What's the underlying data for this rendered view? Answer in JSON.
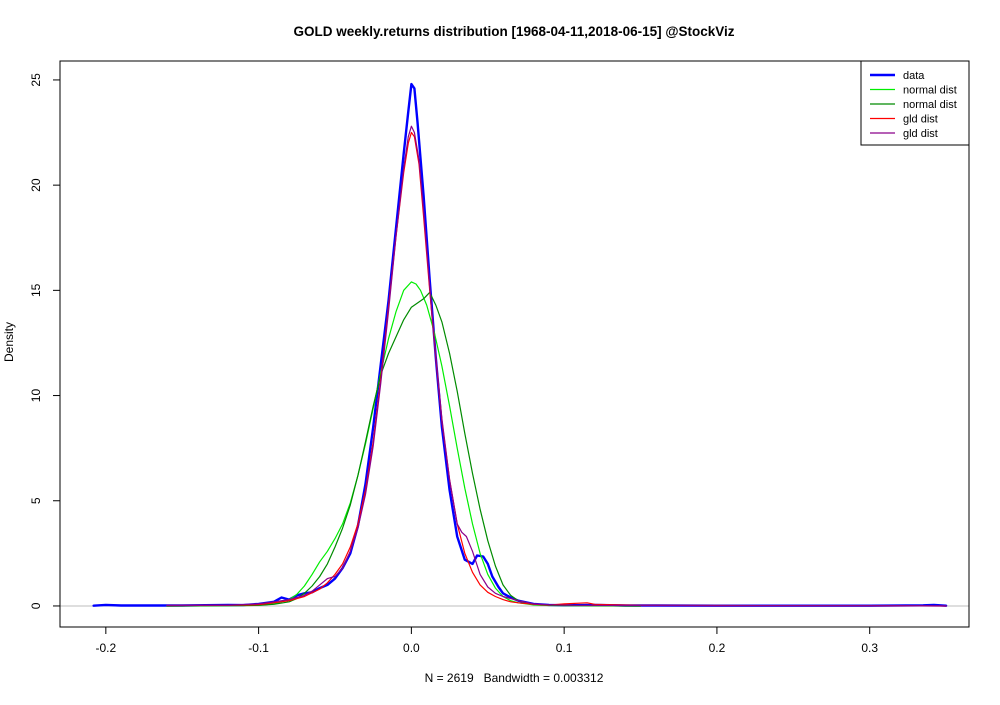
{
  "chart_data": {
    "type": "line",
    "title": "GOLD weekly.returns distribution [1968-04-11,2018-06-15] @StockViz",
    "xlabel": "N = 2619   Bandwidth = 0.003312",
    "ylabel": "Density",
    "xlim": [
      -0.23,
      0.365
    ],
    "ylim": [
      -1.0,
      25.9
    ],
    "xticks": [
      -0.2,
      -0.1,
      0.0,
      0.1,
      0.2,
      0.3
    ],
    "xtick_labels": [
      "-0.2",
      "-0.1",
      "0.0",
      "0.1",
      "0.2",
      "0.3"
    ],
    "yticks": [
      0,
      5,
      10,
      15,
      20,
      25
    ],
    "ytick_labels": [
      "0",
      "5",
      "10",
      "15",
      "20",
      "25"
    ],
    "baseline": 0,
    "baseline_color": "#bebebe",
    "legend_position": "top-right",
    "series": [
      {
        "name": "data",
        "color": "#0000ff",
        "line_width": 2.4,
        "x": [
          -0.208,
          -0.2,
          -0.19,
          -0.15,
          -0.12,
          -0.11,
          -0.1,
          -0.09,
          -0.085,
          -0.08,
          -0.075,
          -0.07,
          -0.065,
          -0.06,
          -0.055,
          -0.05,
          -0.045,
          -0.04,
          -0.035,
          -0.03,
          -0.025,
          -0.02,
          -0.015,
          -0.01,
          -0.005,
          -0.002,
          0.0,
          0.002,
          0.004,
          0.008,
          0.012,
          0.016,
          0.02,
          0.025,
          0.03,
          0.035,
          0.04,
          0.043,
          0.047,
          0.05,
          0.053,
          0.057,
          0.06,
          0.065,
          0.07,
          0.08,
          0.09,
          0.1,
          0.12,
          0.14,
          0.16,
          0.2,
          0.3,
          0.335,
          0.342,
          0.35
        ],
        "y": [
          0.01,
          0.05,
          0.02,
          0.02,
          0.05,
          0.04,
          0.1,
          0.2,
          0.4,
          0.3,
          0.5,
          0.6,
          0.65,
          0.85,
          1.0,
          1.3,
          1.8,
          2.5,
          3.8,
          5.8,
          8.5,
          11.5,
          14.5,
          18.0,
          21.5,
          23.5,
          24.8,
          24.6,
          23.0,
          19.5,
          15.5,
          11.8,
          8.5,
          5.5,
          3.3,
          2.2,
          2.0,
          2.4,
          2.35,
          2.0,
          1.4,
          0.9,
          0.6,
          0.4,
          0.25,
          0.1,
          0.05,
          0.03,
          0.05,
          0.02,
          0.02,
          0.01,
          0.01,
          0.03,
          0.05,
          0.01
        ]
      },
      {
        "name": "normal dist",
        "color": "#00ee00",
        "line_width": 1.2,
        "x": [
          -0.16,
          -0.12,
          -0.1,
          -0.09,
          -0.08,
          -0.075,
          -0.07,
          -0.065,
          -0.06,
          -0.055,
          -0.05,
          -0.045,
          -0.04,
          -0.035,
          -0.03,
          -0.025,
          -0.02,
          -0.015,
          -0.01,
          -0.005,
          0.0,
          0.003,
          0.006,
          0.01,
          0.015,
          0.02,
          0.025,
          0.03,
          0.035,
          0.04,
          0.045,
          0.05,
          0.055,
          0.06,
          0.065,
          0.07,
          0.08,
          0.09,
          0.11,
          0.15
        ],
        "y": [
          0.0,
          0.01,
          0.03,
          0.1,
          0.3,
          0.55,
          0.95,
          1.5,
          2.1,
          2.6,
          3.2,
          3.9,
          4.9,
          6.2,
          7.7,
          9.4,
          11.1,
          12.7,
          14.0,
          15.0,
          15.4,
          15.3,
          15.0,
          14.3,
          13.0,
          11.4,
          9.5,
          7.5,
          5.6,
          3.9,
          2.5,
          1.5,
          0.85,
          0.45,
          0.25,
          0.15,
          0.05,
          0.02,
          0.01,
          0.0
        ]
      },
      {
        "name": "normal dist",
        "color": "#008b00",
        "line_width": 1.2,
        "x": [
          -0.16,
          -0.12,
          -0.1,
          -0.09,
          -0.08,
          -0.075,
          -0.07,
          -0.065,
          -0.06,
          -0.055,
          -0.05,
          -0.045,
          -0.04,
          -0.035,
          -0.03,
          -0.025,
          -0.02,
          -0.015,
          -0.01,
          -0.005,
          0.0,
          0.004,
          0.008,
          0.012,
          0.016,
          0.02,
          0.025,
          0.03,
          0.035,
          0.04,
          0.045,
          0.05,
          0.055,
          0.06,
          0.065,
          0.07,
          0.08,
          0.09,
          0.11,
          0.15
        ],
        "y": [
          0.0,
          0.01,
          0.03,
          0.08,
          0.2,
          0.35,
          0.6,
          0.95,
          1.4,
          2.0,
          2.8,
          3.7,
          4.8,
          6.2,
          7.8,
          9.5,
          11.0,
          12.0,
          12.8,
          13.6,
          14.2,
          14.4,
          14.6,
          14.9,
          14.3,
          13.5,
          12.0,
          10.2,
          8.2,
          6.3,
          4.6,
          3.1,
          1.9,
          1.0,
          0.5,
          0.25,
          0.08,
          0.03,
          0.01,
          0.0
        ]
      },
      {
        "name": "gld dist",
        "color": "#ff0000",
        "line_width": 1.2,
        "x": [
          -0.16,
          -0.12,
          -0.1,
          -0.09,
          -0.08,
          -0.07,
          -0.06,
          -0.055,
          -0.05,
          -0.045,
          -0.04,
          -0.035,
          -0.03,
          -0.025,
          -0.02,
          -0.015,
          -0.01,
          -0.005,
          -0.002,
          0.0,
          0.002,
          0.005,
          0.008,
          0.012,
          0.016,
          0.02,
          0.025,
          0.03,
          0.035,
          0.04,
          0.045,
          0.05,
          0.055,
          0.06,
          0.065,
          0.07,
          0.08,
          0.09,
          0.1,
          0.115,
          0.12,
          0.15,
          0.2,
          0.3,
          0.35
        ],
        "y": [
          0.02,
          0.03,
          0.06,
          0.15,
          0.25,
          0.45,
          0.8,
          1.1,
          1.5,
          2.0,
          2.8,
          3.9,
          5.5,
          7.8,
          10.8,
          14.2,
          17.6,
          20.6,
          22.0,
          22.5,
          22.3,
          21.0,
          18.5,
          15.0,
          11.8,
          8.8,
          6.0,
          3.9,
          2.5,
          1.6,
          1.0,
          0.65,
          0.45,
          0.3,
          0.2,
          0.15,
          0.08,
          0.04,
          0.1,
          0.15,
          0.08,
          0.03,
          0.02,
          0.01,
          0.0
        ]
      },
      {
        "name": "gld dist",
        "color": "#8b008b",
        "line_width": 1.2,
        "x": [
          -0.16,
          -0.12,
          -0.1,
          -0.09,
          -0.08,
          -0.075,
          -0.07,
          -0.065,
          -0.06,
          -0.055,
          -0.05,
          -0.045,
          -0.04,
          -0.035,
          -0.03,
          -0.025,
          -0.02,
          -0.015,
          -0.01,
          -0.005,
          -0.002,
          0.0,
          0.002,
          0.005,
          0.008,
          0.012,
          0.016,
          0.02,
          0.025,
          0.03,
          0.033,
          0.036,
          0.04,
          0.045,
          0.05,
          0.055,
          0.06,
          0.065,
          0.07,
          0.08,
          0.09,
          0.11,
          0.15,
          0.2,
          0.3,
          0.35
        ],
        "y": [
          0.02,
          0.04,
          0.1,
          0.2,
          0.3,
          0.4,
          0.5,
          0.7,
          1.0,
          1.3,
          1.4,
          1.8,
          2.6,
          3.7,
          5.3,
          7.6,
          10.6,
          14.0,
          17.6,
          20.8,
          22.3,
          22.8,
          22.5,
          21.2,
          18.8,
          15.2,
          11.9,
          8.9,
          6.0,
          3.9,
          3.5,
          3.3,
          2.6,
          1.5,
          0.9,
          0.6,
          0.45,
          0.35,
          0.25,
          0.1,
          0.05,
          0.03,
          0.02,
          0.01,
          0.01,
          0.0
        ]
      }
    ]
  }
}
